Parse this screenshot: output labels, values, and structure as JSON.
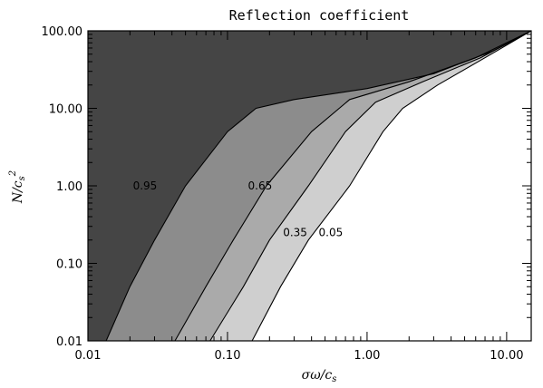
{
  "chart_data": {
    "type": "contour",
    "title": "Reflection coefficient",
    "xlabel": "σω/c",
    "xlabel_sub": "s",
    "ylabel": "N/c",
    "ylabel_sub": "s",
    "ylabel_sup": "2",
    "x_scale": "log",
    "y_scale": "log",
    "xlim": [
      0.01,
      15
    ],
    "ylim": [
      0.01,
      100
    ],
    "x_ticks": [
      {
        "value": 0.01,
        "label": "0.01"
      },
      {
        "value": 0.1,
        "label": "0.10"
      },
      {
        "value": 1,
        "label": "1.00"
      },
      {
        "value": 10,
        "label": "10.00"
      }
    ],
    "y_ticks": [
      {
        "value": 0.01,
        "label": "0.01"
      },
      {
        "value": 0.1,
        "label": "0.10"
      },
      {
        "value": 1,
        "label": "1.00"
      },
      {
        "value": 10,
        "label": "10.00"
      },
      {
        "value": 100,
        "label": "100.00"
      }
    ],
    "levels": [
      {
        "label": "0.95",
        "fill_above": "#454545",
        "label_at": {
          "x": 0.021,
          "y": 1.0
        },
        "points": [
          [
            0.0135,
            0.01
          ],
          [
            0.02,
            0.05
          ],
          [
            0.03,
            0.2
          ],
          [
            0.05,
            1.0
          ],
          [
            0.1,
            5.0
          ],
          [
            0.16,
            10.0
          ],
          [
            0.3,
            13.0
          ],
          [
            1.0,
            18.0
          ],
          [
            3.0,
            28.0
          ],
          [
            8.0,
            55.0
          ],
          [
            15.0,
            100.0
          ]
        ]
      },
      {
        "label": "0.65",
        "fill_above": "#8c8c8c",
        "label_at": {
          "x": 0.14,
          "y": 1.0
        },
        "points": [
          [
            0.042,
            0.01
          ],
          [
            0.07,
            0.05
          ],
          [
            0.11,
            0.2
          ],
          [
            0.19,
            1.0
          ],
          [
            0.4,
            5.0
          ],
          [
            0.75,
            13.0
          ],
          [
            2.0,
            22.0
          ],
          [
            6.0,
            45.0
          ],
          [
            15.0,
            100.0
          ]
        ]
      },
      {
        "label": "0.35",
        "fill_above": "#aaaaaa",
        "label_at": {
          "x": 0.25,
          "y": 0.25
        },
        "points": [
          [
            0.075,
            0.01
          ],
          [
            0.13,
            0.05
          ],
          [
            0.2,
            0.2
          ],
          [
            0.38,
            1.0
          ],
          [
            0.7,
            5.0
          ],
          [
            1.15,
            12.0
          ],
          [
            2.5,
            22.0
          ],
          [
            6.5,
            45.0
          ],
          [
            15.0,
            100.0
          ]
        ]
      },
      {
        "label": "0.05",
        "fill_above": "#cfcfcf",
        "label_at": {
          "x": 0.45,
          "y": 0.25
        },
        "points": [
          [
            0.15,
            0.01
          ],
          [
            0.24,
            0.05
          ],
          [
            0.38,
            0.2
          ],
          [
            0.75,
            1.0
          ],
          [
            1.3,
            5.0
          ],
          [
            1.8,
            10.0
          ],
          [
            3.2,
            20.0
          ],
          [
            7.0,
            45.0
          ],
          [
            15.0,
            100.0
          ]
        ]
      }
    ],
    "below_lowest_fill": "#ffffff"
  }
}
